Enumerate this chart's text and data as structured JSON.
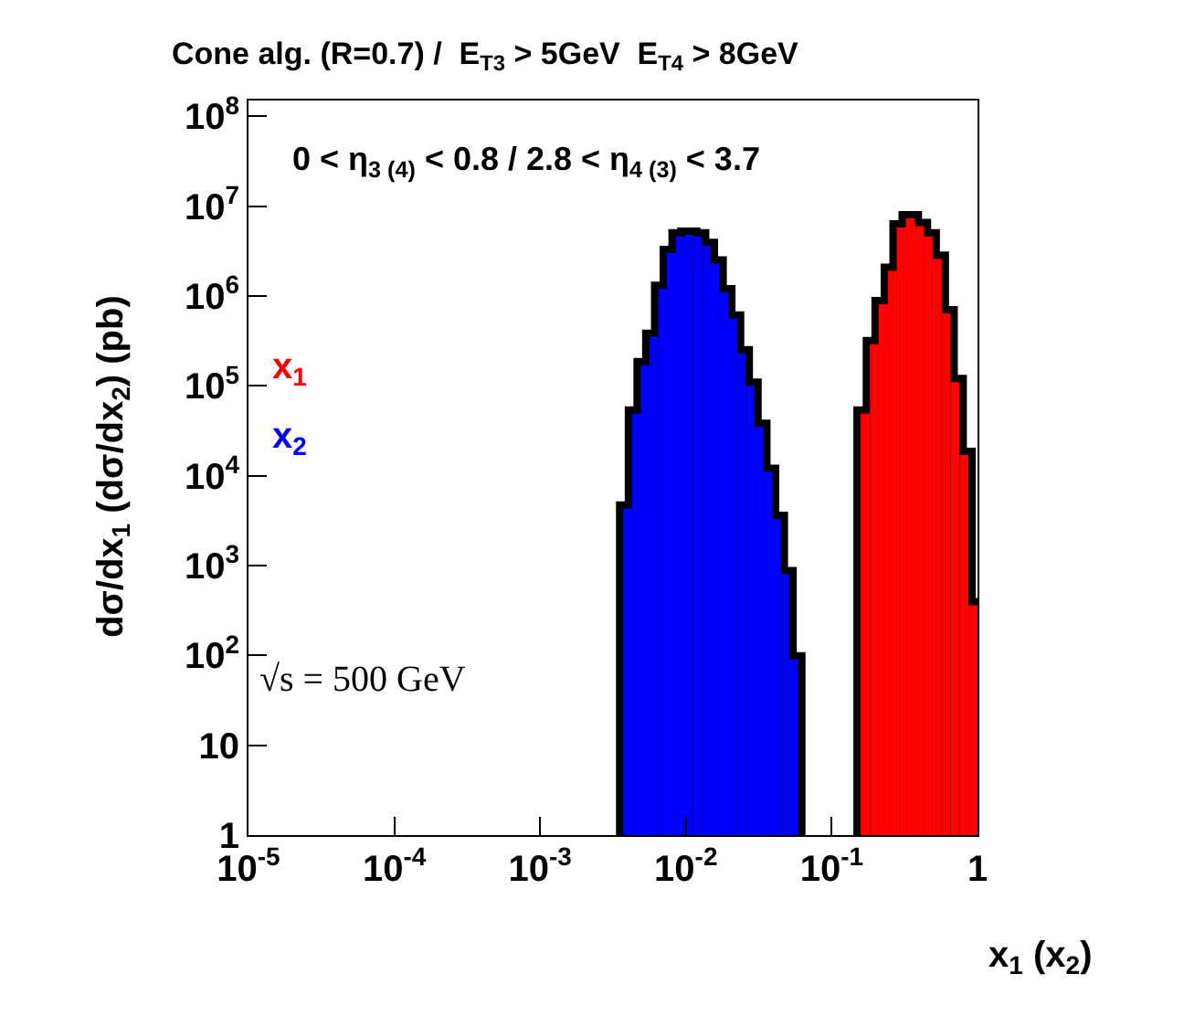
{
  "chart_data": {
    "type": "histogram",
    "title": "Cone alg. (R=0.7) /  E$_{T3}$ > 5GeV  E$_{T4}$ > 8GeV",
    "xlabel": "x$_{1}$ (x$_{2}$)",
    "ylabel": "dσ/dx$_{1}$ (dσ/dx$_{2}$) (pb)",
    "annotations": [
      "0 < η$_{3 (4)}$ < 0.8 / 2.8 < η$_{4 (3)}$ < 3.7",
      "√s = 500 GeV"
    ],
    "bins": [
      0.00372,
      0.00427,
      0.0049,
      0.00562,
      0.00646,
      0.00741,
      0.00851,
      0.00977,
      0.0112,
      0.0129,
      0.0148,
      0.017,
      0.0195,
      0.0224,
      0.0257,
      0.0295,
      0.0339,
      0.0389,
      0.0447,
      0.0513,
      0.0589,
      0.158,
      0.183,
      0.21,
      0.243,
      0.279,
      0.322,
      0.371,
      0.428,
      0.492,
      0.568,
      0.653,
      0.753,
      0.867,
      1
    ],
    "series": [
      {
        "name": "x$_{1}$",
        "color": "#ff0000",
        "values": [
          null,
          null,
          null,
          null,
          null,
          null,
          null,
          null,
          null,
          null,
          null,
          null,
          null,
          null,
          null,
          null,
          null,
          null,
          null,
          null,
          null,
          49000,
          290000,
          810000,
          1900000,
          5800000,
          7300000,
          6000000,
          4600000,
          2600000,
          640000,
          110000,
          17000,
          360
        ]
      },
      {
        "name": "x$_{2}$",
        "color": "#0000ff",
        "values": [
          4300,
          49000,
          170000,
          350000,
          1200000,
          3000000,
          4600000,
          4800000,
          4600000,
          3600000,
          2300000,
          1100000,
          560000,
          230000,
          100000,
          35000,
          11000,
          3300,
          800,
          90,
          null,
          null,
          null,
          null,
          null,
          null,
          null,
          null,
          null,
          null,
          null,
          null,
          null,
          null
        ]
      }
    ],
    "log": "xy",
    "xlim": [
      1e-05,
      1
    ],
    "ylim": [
      1,
      150000000
    ],
    "xticks": [
      {
        "value": 1e-05,
        "label": "10$^{-5}$"
      },
      {
        "value": 0.0001,
        "label": "10$^{-4}$"
      },
      {
        "value": 0.001,
        "label": "10$^{-3}$"
      },
      {
        "value": 0.01,
        "label": "10$^{-2}$"
      },
      {
        "value": 0.1,
        "label": "10$^{-1}$"
      },
      1
    ],
    "yticks": [
      1,
      10,
      {
        "value": 100,
        "label": "10$^{2}$"
      },
      {
        "value": 1000,
        "label": "10$^{3}$"
      },
      {
        "value": 10000,
        "label": "10$^{4}$"
      },
      {
        "value": 100000,
        "label": "10$^{5}$"
      },
      {
        "value": 1000000,
        "label": "10$^{6}$"
      },
      {
        "value": 10000000,
        "label": "10$^{7}$"
      },
      {
        "value": 100000000,
        "label": "10$^{8}$"
      }
    ]
  }
}
